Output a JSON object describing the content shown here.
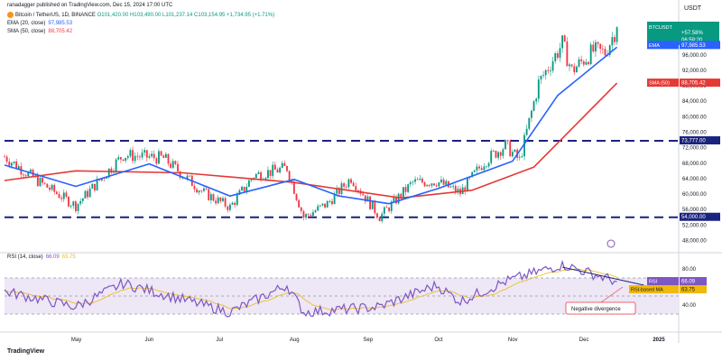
{
  "publish": {
    "text": "ranadagger published on TradingView.com, Dec 15, 2024 17:00 UTC"
  },
  "symbol": {
    "title": "Bitcoin / TetherUS, 1D, BINANCE",
    "ohlc": "O101,420.00  H103,490.00  L101,237.14  C103,154.95  +1,734.95 (+1.71%)"
  },
  "indicators": {
    "ema_label": "EMA (20, close)",
    "ema_value": "97,985.53",
    "sma_label": "SMA (50, close)",
    "sma_value": "88,705.42",
    "rsi_label": "RSI (14, close)",
    "rsi_value": "66.09",
    "rsi_ma_value": "63.75"
  },
  "price_axis": {
    "unit": "USDT",
    "ticks": [
      "96,000.00",
      "92,000.00",
      "88,000.00",
      "84,000.00",
      "80,000.00",
      "76,000.00",
      "72,000.00",
      "68,000.00",
      "64,000.00",
      "60,000.00",
      "56,000.00",
      "52,000.00",
      "48,000.00"
    ]
  },
  "rsi_axis": {
    "ticks": [
      "80.00",
      "40.00"
    ]
  },
  "time_axis": {
    "ticks": [
      "May",
      "Jun",
      "Jul",
      "Aug",
      "Sep",
      "Oct",
      "Nov",
      "Dec",
      "2025"
    ]
  },
  "tags": {
    "symbol_tag": "BTCUSDT",
    "price_tag": "+57.58%",
    "countdown": "06:59:20",
    "ema_tag": "EMA",
    "ema_tag_value": "97,985.53",
    "sma_tag": "SMA (50)",
    "sma_tag_value": "88,705.42",
    "resistance_value": "73,777.00",
    "support_value": "54,000.00",
    "rsi_tag": "RSI",
    "rsi_tag_value": "66.09",
    "rsi_ma_tag": "RSI-based MA",
    "rsi_ma_tag_value": "63.75"
  },
  "annotation": {
    "text": "Negative divergence"
  },
  "brand": {
    "text": "TradingView"
  },
  "colors": {
    "up": "#089981",
    "down": "#f23645",
    "ema": "#2962ff",
    "sma": "#e53935",
    "level": "#1a237e",
    "rsi": "#7e57c2",
    "rsi_ma": "#f0b90b",
    "rsi_band": "#ede7f6"
  },
  "chart_data": {
    "type": "candlestick",
    "price_range": [
      46000,
      106000
    ],
    "rsi_range": [
      20,
      90
    ],
    "x_start": "2024-04-01",
    "x_end": "2025-01-10",
    "horizontal_levels": [
      73777,
      54000
    ],
    "trendline": {
      "from": [
        "2024-11-22",
        82
      ],
      "to": [
        "2024-12-15",
        66
      ]
    },
    "candles_daily_close": [
      {
        "date": "2024-04-01",
        "close": 69700
      },
      {
        "date": "2024-04-15",
        "close": 63400
      },
      {
        "date": "2024-05-01",
        "close": 57000
      },
      {
        "date": "2024-05-15",
        "close": 66200
      },
      {
        "date": "2024-05-21",
        "close": 70100
      },
      {
        "date": "2024-06-07",
        "close": 69300
      },
      {
        "date": "2024-06-24",
        "close": 60300
      },
      {
        "date": "2024-07-05",
        "close": 56600
      },
      {
        "date": "2024-07-15",
        "close": 64800
      },
      {
        "date": "2024-07-29",
        "close": 66800
      },
      {
        "date": "2024-08-05",
        "close": 54000
      },
      {
        "date": "2024-08-15",
        "close": 57500
      },
      {
        "date": "2024-08-25",
        "close": 64200
      },
      {
        "date": "2024-09-06",
        "close": 54100
      },
      {
        "date": "2024-09-20",
        "close": 63000
      },
      {
        "date": "2024-09-30",
        "close": 63300
      },
      {
        "date": "2024-10-10",
        "close": 60300
      },
      {
        "date": "2024-10-20",
        "close": 68400
      },
      {
        "date": "2024-10-29",
        "close": 72600
      },
      {
        "date": "2024-11-04",
        "close": 68700
      },
      {
        "date": "2024-11-12",
        "close": 88700
      },
      {
        "date": "2024-11-22",
        "close": 98900
      },
      {
        "date": "2024-11-26",
        "close": 91900
      },
      {
        "date": "2024-12-05",
        "close": 97000
      },
      {
        "date": "2024-12-10",
        "close": 96600
      },
      {
        "date": "2024-12-15",
        "close": 103150
      }
    ],
    "ema20": [
      {
        "date": "2024-04-01",
        "value": 67500
      },
      {
        "date": "2024-05-01",
        "value": 62000
      },
      {
        "date": "2024-06-01",
        "value": 67800
      },
      {
        "date": "2024-07-05",
        "value": 59500
      },
      {
        "date": "2024-08-01",
        "value": 63800
      },
      {
        "date": "2024-08-20",
        "value": 59500
      },
      {
        "date": "2024-09-10",
        "value": 57500
      },
      {
        "date": "2024-10-01",
        "value": 61500
      },
      {
        "date": "2024-11-01",
        "value": 68500
      },
      {
        "date": "2024-11-20",
        "value": 85500
      },
      {
        "date": "2024-12-15",
        "value": 97985.53
      }
    ],
    "sma50": [
      {
        "date": "2024-04-01",
        "value": 63500
      },
      {
        "date": "2024-05-01",
        "value": 66000
      },
      {
        "date": "2024-06-15",
        "value": 65500
      },
      {
        "date": "2024-08-01",
        "value": 63000
      },
      {
        "date": "2024-09-15",
        "value": 59000
      },
      {
        "date": "2024-10-15",
        "value": 61000
      },
      {
        "date": "2024-11-10",
        "value": 67000
      },
      {
        "date": "2024-12-15",
        "value": 88705.42
      }
    ],
    "rsi": [
      {
        "date": "2024-04-01",
        "value": 55
      },
      {
        "date": "2024-05-01",
        "value": 38
      },
      {
        "date": "2024-05-21",
        "value": 64
      },
      {
        "date": "2024-07-05",
        "value": 32
      },
      {
        "date": "2024-07-29",
        "value": 62
      },
      {
        "date": "2024-08-05",
        "value": 32
      },
      {
        "date": "2024-09-06",
        "value": 38
      },
      {
        "date": "2024-09-30",
        "value": 62
      },
      {
        "date": "2024-10-10",
        "value": 44
      },
      {
        "date": "2024-10-29",
        "value": 66
      },
      {
        "date": "2024-11-22",
        "value": 85
      },
      {
        "date": "2024-12-15",
        "value": 66.09
      }
    ]
  }
}
